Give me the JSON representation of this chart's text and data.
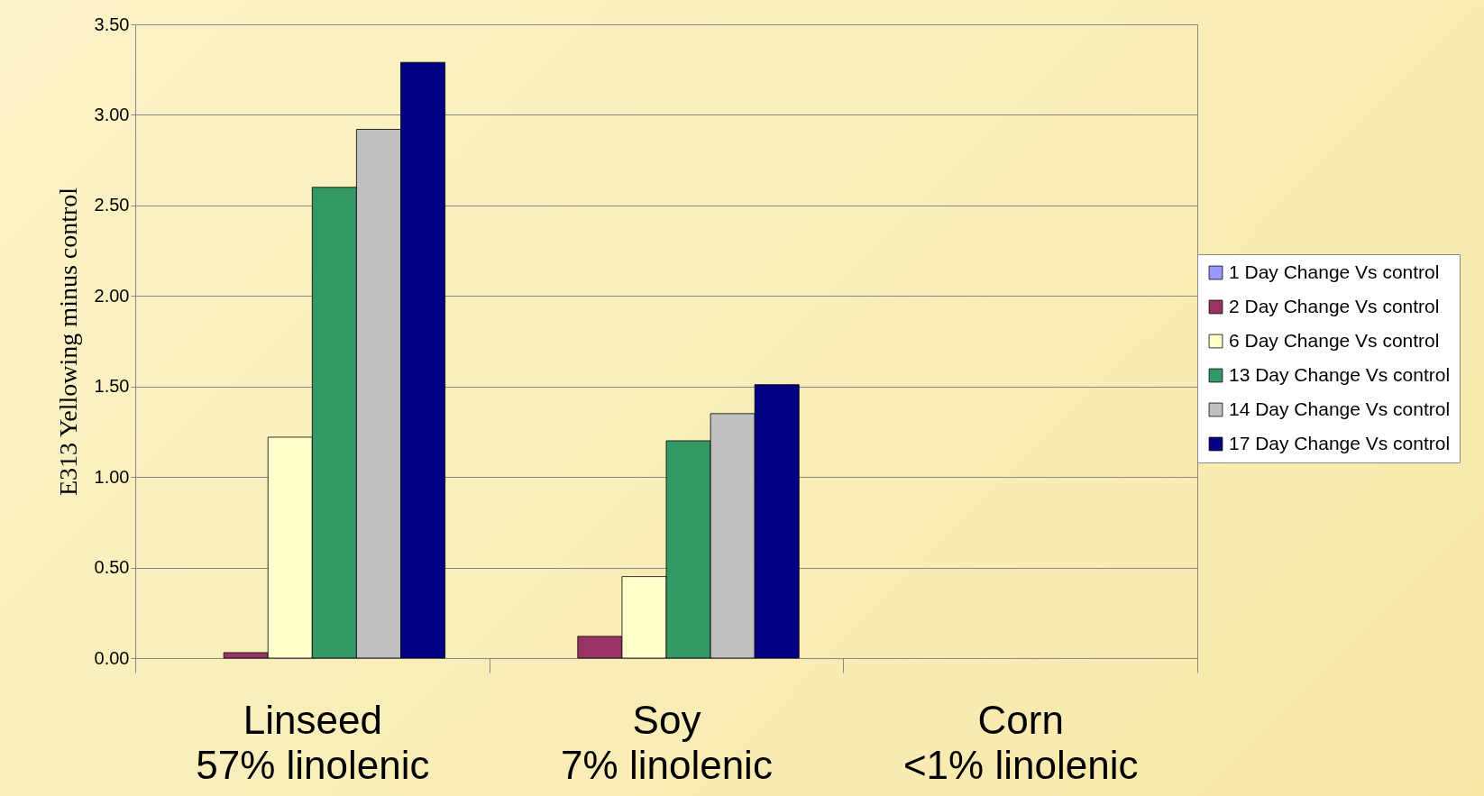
{
  "chart_data": {
    "type": "bar",
    "ylabel": "E313 Yellowing minus control",
    "categories": [
      "Linseed\n57% linolenic",
      "Soy\n7% linolenic",
      "Corn\n<1% linolenic"
    ],
    "series": [
      {
        "name": "1 Day Change Vs control",
        "color": "#9999ff",
        "values": [
          0,
          0,
          0
        ]
      },
      {
        "name": "2 Day Change Vs control",
        "color": "#993366",
        "values": [
          0.03,
          0.12,
          0
        ]
      },
      {
        "name": "6 Day Change Vs control",
        "color": "#ffffcc",
        "values": [
          1.22,
          0.45,
          0
        ]
      },
      {
        "name": "13 Day Change Vs control",
        "color": "#339966",
        "values": [
          2.6,
          1.2,
          0
        ]
      },
      {
        "name": "14 Day Change Vs control",
        "color": "#c0c0c0",
        "values": [
          2.92,
          1.35,
          0
        ]
      },
      {
        "name": "17 Day Change Vs control",
        "color": "#000080",
        "values": [
          3.29,
          1.51,
          0
        ]
      }
    ],
    "ylim": [
      0,
      3.5
    ],
    "yticks": [
      {
        "value": 0,
        "label": "0.00"
      },
      {
        "value": 0.5,
        "label": "0.50"
      },
      {
        "value": 1,
        "label": "1.00"
      },
      {
        "value": 1.5,
        "label": "1.50"
      },
      {
        "value": 2,
        "label": "2.00"
      },
      {
        "value": 2.5,
        "label": "2.50"
      },
      {
        "value": 3,
        "label": "3.00"
      },
      {
        "value": 3.5,
        "label": "3.50"
      }
    ],
    "grid": "y",
    "legend": "right"
  }
}
